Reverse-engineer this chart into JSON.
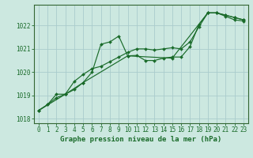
{
  "title": "Graphe pression niveau de la mer (hPa)",
  "background_color": "#cce8e0",
  "grid_color": "#aacccc",
  "line_color": "#1a6b2a",
  "spine_color": "#336633",
  "xlim": [
    -0.5,
    23.5
  ],
  "ylim": [
    1017.8,
    1022.9
  ],
  "yticks": [
    1018,
    1019,
    1020,
    1021,
    1022
  ],
  "xticks": [
    0,
    1,
    2,
    3,
    4,
    5,
    6,
    7,
    8,
    9,
    10,
    11,
    12,
    13,
    14,
    15,
    16,
    17,
    18,
    19,
    20,
    21,
    22,
    23
  ],
  "series1_x": [
    0,
    1,
    2,
    3,
    4,
    5,
    6,
    7,
    8,
    9,
    10,
    11,
    12,
    13,
    14,
    15,
    16,
    17,
    18,
    19,
    20,
    21,
    22,
    23
  ],
  "series1_y": [
    1018.35,
    1018.6,
    1018.9,
    1019.05,
    1019.25,
    1019.55,
    1020.0,
    1021.2,
    1021.3,
    1021.55,
    1020.7,
    1020.72,
    1020.5,
    1020.5,
    1020.6,
    1020.65,
    1020.65,
    1021.1,
    1022.05,
    1022.55,
    1022.55,
    1022.45,
    1022.35,
    1022.25
  ],
  "series2_x": [
    0,
    1,
    2,
    3,
    4,
    5,
    6,
    7,
    8,
    9,
    10,
    11,
    12,
    13,
    14,
    15,
    16,
    17,
    18,
    19,
    20,
    21,
    22,
    23
  ],
  "series2_y": [
    1018.35,
    1018.6,
    1019.05,
    1019.05,
    1019.6,
    1019.9,
    1020.15,
    1020.25,
    1020.45,
    1020.65,
    1020.85,
    1021.0,
    1021.0,
    1020.95,
    1021.0,
    1021.05,
    1021.0,
    1021.3,
    1021.95,
    1022.55,
    1022.55,
    1022.4,
    1022.25,
    1022.2
  ],
  "series3_x": [
    0,
    3,
    5,
    10,
    15,
    19,
    20,
    21,
    22,
    23
  ],
  "series3_y": [
    1018.35,
    1019.05,
    1019.55,
    1020.7,
    1020.6,
    1022.55,
    1022.55,
    1022.45,
    1022.35,
    1022.25
  ],
  "title_fontsize": 6.5,
  "tick_fontsize": 5.5,
  "marker_size": 2.0,
  "line_width": 0.85
}
